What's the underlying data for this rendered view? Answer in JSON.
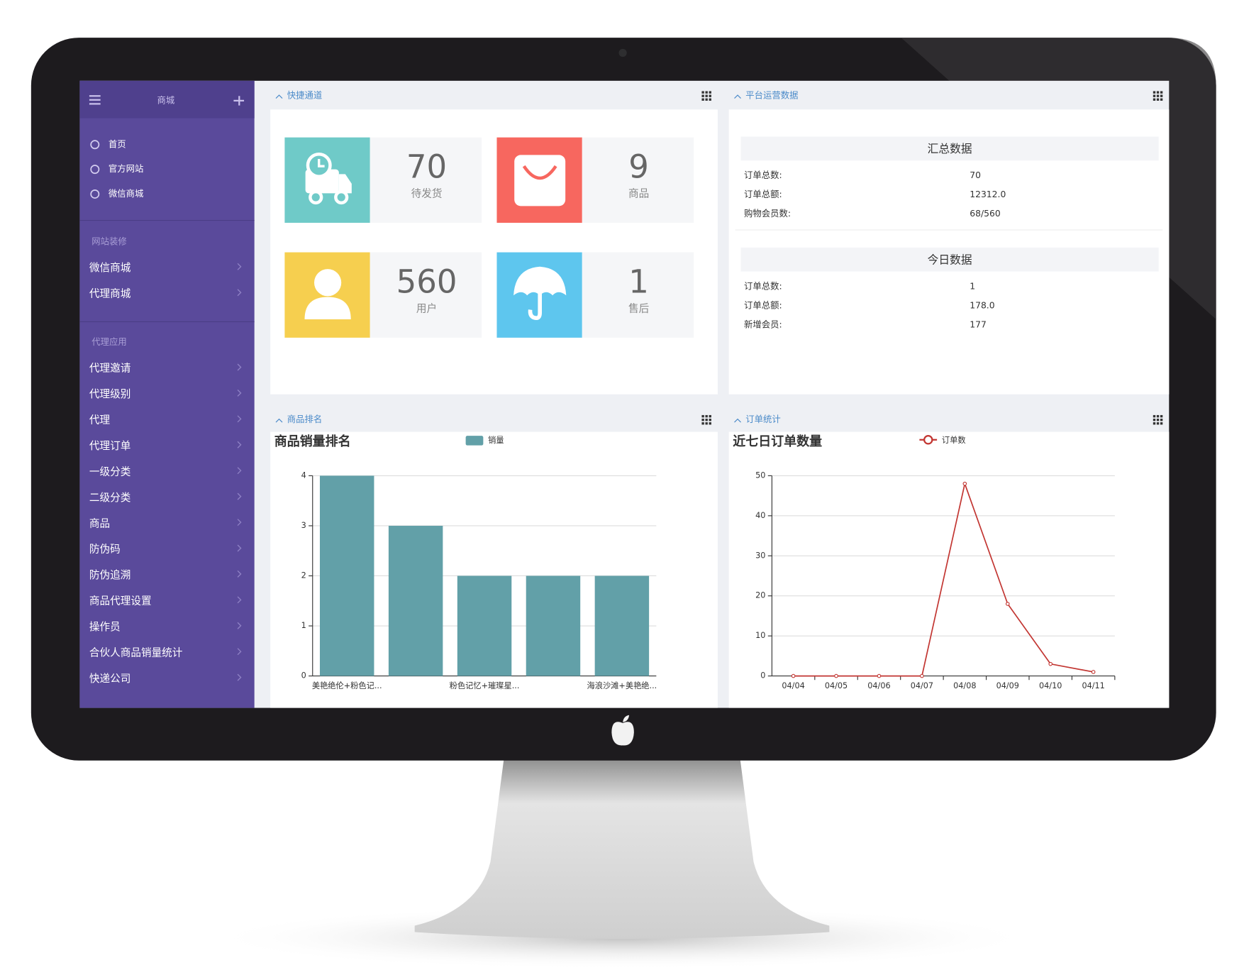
{
  "sidebar": {
    "title": "商城",
    "top_items": [
      "首页",
      "官方网站",
      "微信商城"
    ],
    "sections": [
      {
        "title": "网站装修",
        "items": [
          "微信商城",
          "代理商城"
        ]
      },
      {
        "title": "代理应用",
        "items": [
          "代理邀请",
          "代理级别",
          "代理",
          "代理订单",
          "一级分类",
          "二级分类",
          "商品",
          "防伪码",
          "防伪追溯",
          "商品代理设置",
          "操作员",
          "合伙人商品销量统计",
          "快递公司"
        ]
      }
    ]
  },
  "quick_links": {
    "title": "快捷通道",
    "tiles": [
      {
        "value": 70,
        "label": "待发货"
      },
      {
        "value": 9,
        "label": "商品"
      },
      {
        "value": 560,
        "label": "用户"
      },
      {
        "value": 1,
        "label": "售后"
      }
    ]
  },
  "platform_data": {
    "title": "平台运营数据",
    "summary": {
      "title": "汇总数据",
      "rows": [
        [
          "订单总数:",
          "70"
        ],
        [
          "订单总额:",
          "12312.0"
        ],
        [
          "购物会员数:",
          "68/560"
        ]
      ]
    },
    "today": {
      "title": "今日数据",
      "rows": [
        [
          "订单总数:",
          "1"
        ],
        [
          "订单总额:",
          "178.0"
        ],
        [
          "新增会员:",
          "177"
        ]
      ]
    }
  },
  "panels": {
    "ranking": "商品排名",
    "orders": "订单统计"
  },
  "chart_data": [
    {
      "type": "bar",
      "title": "商品销量排名",
      "categories": [
        "美艳绝伦+粉色记...",
        null,
        "粉色记忆+璀璨星...",
        null,
        "海浪沙滩+美艳绝..."
      ],
      "series": [
        {
          "name": "销量",
          "color": "#62a0a8",
          "values": [
            4,
            3,
            2,
            2,
            2
          ]
        }
      ],
      "ylim": [
        0,
        4
      ],
      "yticks": [
        0,
        1,
        2,
        3,
        4
      ],
      "grid": true
    },
    {
      "type": "line",
      "title": "近七日订单数量",
      "categories": [
        "04/04",
        "04/05",
        "04/06",
        "04/07",
        "04/08",
        "04/09",
        "04/10",
        "04/11"
      ],
      "series": [
        {
          "name": "订单数",
          "color": "#c23531",
          "values": [
            0,
            0,
            0,
            0,
            48,
            18,
            3,
            1
          ]
        }
      ],
      "ylim": [
        0,
        50
      ],
      "yticks": [
        0,
        10,
        20,
        30,
        40,
        50
      ],
      "grid": true
    }
  ]
}
